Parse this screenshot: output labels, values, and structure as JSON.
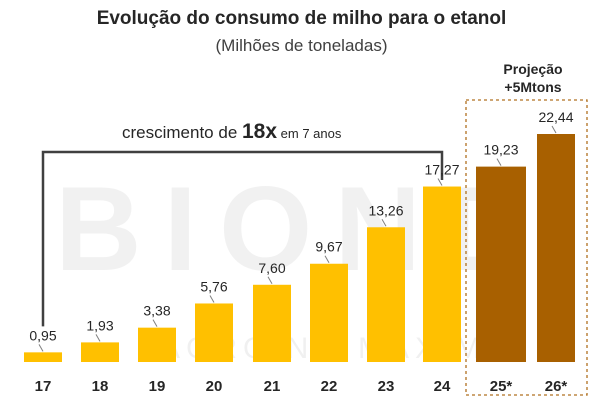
{
  "title": "Evolução do consumo de milho para o etanol",
  "subtitle": "(Milhões de toneladas)",
  "projection": {
    "line1": "Projeção",
    "line2": "+5Mtons"
  },
  "growth": {
    "prefix": "crescimento de ",
    "multiplier": "18x",
    "suffix": " em 7 anos"
  },
  "watermark": {
    "main": "BIOND",
    "sub": "AGRO NO MÁXIMO"
  },
  "colors": {
    "actual": "#FFC000",
    "projection": "#A86000",
    "text": "#262626",
    "bracket": "#404040",
    "box_border": "#B07020",
    "label_line": "#7F7F7F"
  },
  "chart_data": {
    "type": "bar",
    "title": "Evolução do consumo de milho para o etanol",
    "ylabel": "Milhões de toneladas",
    "xlabel": "",
    "categories": [
      "17",
      "18",
      "19",
      "20",
      "21",
      "22",
      "23",
      "24",
      "25*",
      "26*"
    ],
    "values": [
      0.95,
      1.93,
      3.38,
      5.76,
      7.6,
      9.67,
      13.26,
      17.27,
      19.23,
      22.44
    ],
    "value_labels": [
      "0,95",
      "1,93",
      "3,38",
      "5,76",
      "7,60",
      "9,67",
      "13,26",
      "17,27",
      "19,23",
      "22,44"
    ],
    "projected": [
      false,
      false,
      false,
      false,
      false,
      false,
      false,
      false,
      true,
      true
    ],
    "ylim": [
      0,
      24
    ],
    "grid": false
  }
}
